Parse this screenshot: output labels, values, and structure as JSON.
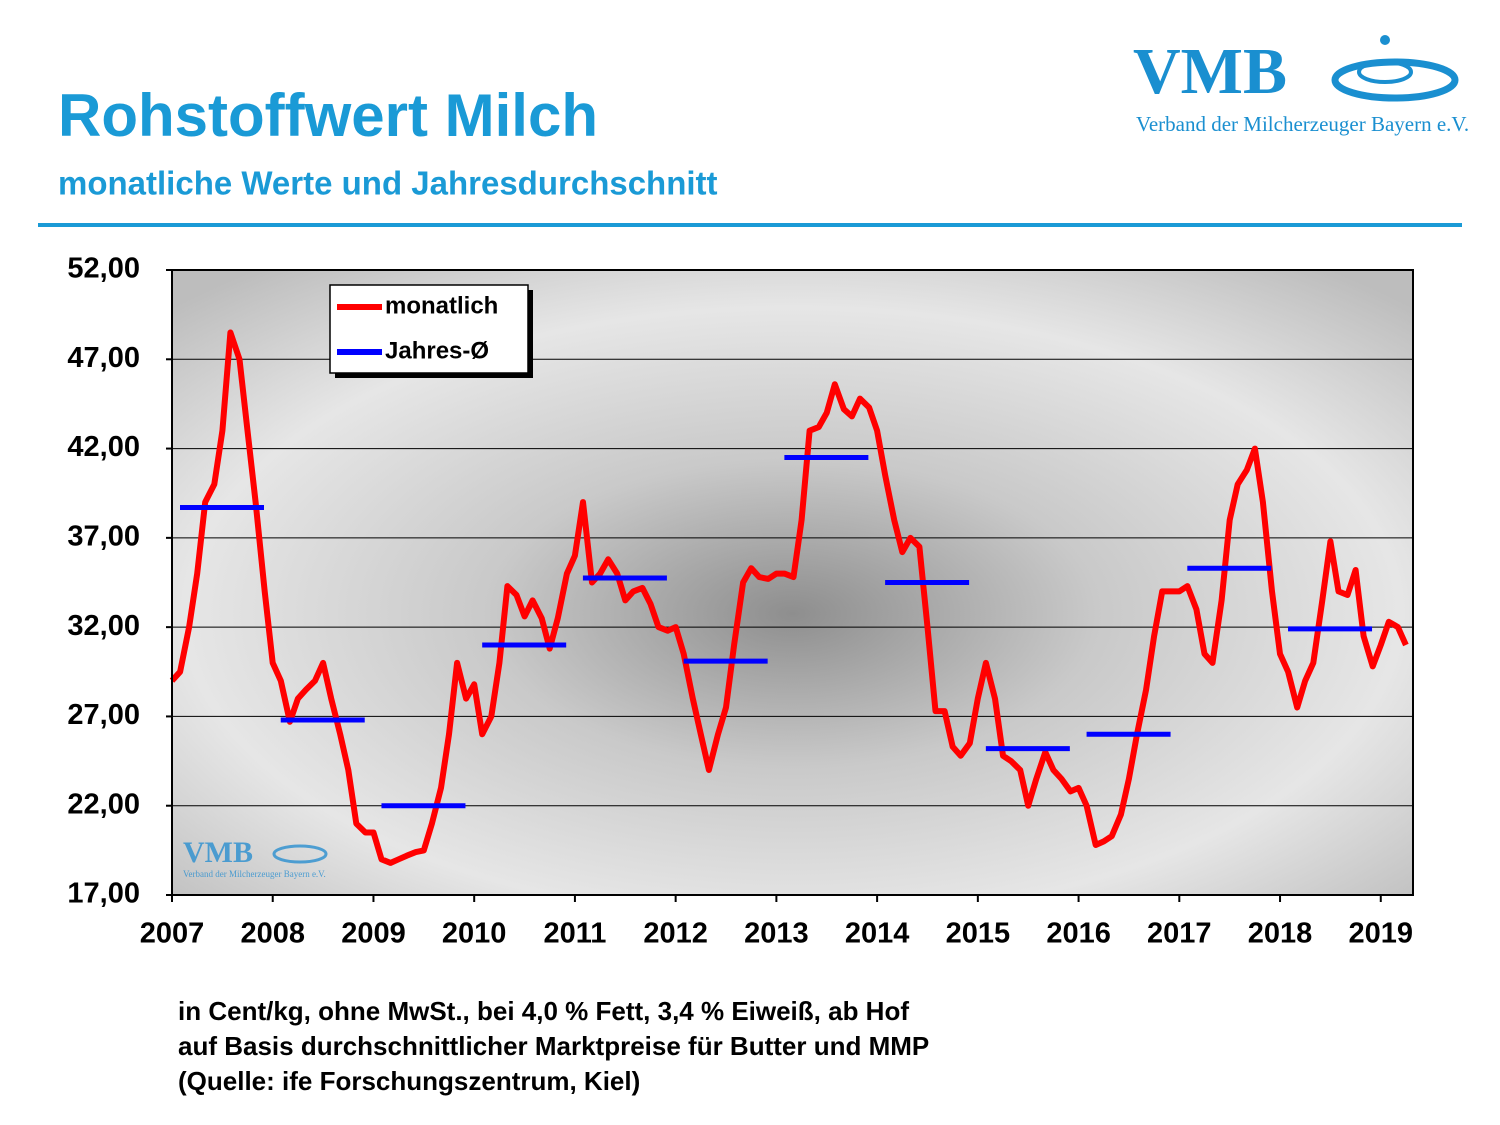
{
  "chart_data": {
    "type": "line",
    "title": "Rohstoffwert Milch",
    "subtitle": "monatliche Werte und Jahresdurchschnitt",
    "logo": "VMB",
    "logo_caption": "Verband der Milcherzeuger Bayern e.V.",
    "notes": [
      "in Cent/kg, ohne MwSt., bei 4,0 % Fett, 3,4 % Eiweiß, ab Hof",
      "auf Basis durchschnittlicher Marktpreise für Butter und MMP",
      "(Quelle: ife Forschungszentrum, Kiel)"
    ],
    "xlim": [
      2007,
      2019.32
    ],
    "xticks": [
      2007,
      2008,
      2009,
      2010,
      2011,
      2012,
      2013,
      2014,
      2015,
      2016,
      2017,
      2018,
      2019
    ],
    "ylim": [
      17,
      52
    ],
    "yticks": [
      {
        "value": 17,
        "label": "17,00"
      },
      {
        "value": 22,
        "label": "22,00"
      },
      {
        "value": 27,
        "label": "27,00"
      },
      {
        "value": 32,
        "label": "32,00"
      },
      {
        "value": 37,
        "label": "37,00"
      },
      {
        "value": 42,
        "label": "42,00"
      },
      {
        "value": 47,
        "label": "47,00"
      },
      {
        "value": 52,
        "label": "52,00"
      }
    ],
    "grid": true,
    "series": [
      {
        "name": "monatlich",
        "color": "#ff0000",
        "style": "line",
        "x": [
          2007,
          2007.08,
          2007.17,
          2007.25,
          2007.33,
          2007.42,
          2007.5,
          2007.58,
          2007.67,
          2007.75,
          2007.83,
          2007.92,
          2008,
          2008.08,
          2008.17,
          2008.25,
          2008.33,
          2008.42,
          2008.5,
          2008.58,
          2008.67,
          2008.75,
          2008.83,
          2008.92,
          2009,
          2009.08,
          2009.17,
          2009.25,
          2009.33,
          2009.42,
          2009.5,
          2009.58,
          2009.67,
          2009.75,
          2009.83,
          2009.92,
          2010,
          2010.08,
          2010.17,
          2010.25,
          2010.33,
          2010.42,
          2010.5,
          2010.58,
          2010.67,
          2010.75,
          2010.83,
          2010.92,
          2011,
          2011.08,
          2011.17,
          2011.25,
          2011.33,
          2011.42,
          2011.5,
          2011.58,
          2011.67,
          2011.75,
          2011.83,
          2011.92,
          2012,
          2012.08,
          2012.17,
          2012.25,
          2012.33,
          2012.42,
          2012.5,
          2012.58,
          2012.67,
          2012.75,
          2012.83,
          2012.92,
          2013,
          2013.08,
          2013.17,
          2013.25,
          2013.33,
          2013.42,
          2013.5,
          2013.58,
          2013.67,
          2013.75,
          2013.83,
          2013.92,
          2014,
          2014.08,
          2014.17,
          2014.25,
          2014.33,
          2014.42,
          2014.5,
          2014.58,
          2014.67,
          2014.75,
          2014.83,
          2014.92,
          2015,
          2015.08,
          2015.17,
          2015.25,
          2015.33,
          2015.42,
          2015.5,
          2015.58,
          2015.67,
          2015.75,
          2015.83,
          2015.92,
          2016,
          2016.08,
          2016.17,
          2016.25,
          2016.33,
          2016.42,
          2016.5,
          2016.58,
          2016.67,
          2016.75,
          2016.83,
          2016.92,
          2017,
          2017.08,
          2017.17,
          2017.25,
          2017.33,
          2017.42,
          2017.5,
          2017.58,
          2017.67,
          2017.75,
          2017.83,
          2017.92,
          2018,
          2018.08,
          2018.17,
          2018.25,
          2018.33,
          2018.42,
          2018.5,
          2018.58,
          2018.67,
          2018.75,
          2018.83,
          2018.92,
          2019,
          2019.08,
          2019.17,
          2019.25
        ],
        "values": [
          29,
          29.5,
          32,
          35,
          39,
          40,
          43,
          48.5,
          47,
          43,
          39,
          34,
          30,
          29,
          26.7,
          28,
          28.5,
          29,
          30,
          28,
          26,
          24,
          21,
          20.5,
          20.5,
          19,
          18.8,
          19,
          19.2,
          19.4,
          19.5,
          21,
          23,
          26,
          30,
          28,
          28.8,
          26,
          27,
          30,
          34.3,
          33.8,
          32.6,
          33.5,
          32.5,
          30.8,
          32.5,
          35,
          36,
          39,
          34.5,
          35,
          35.8,
          35,
          33.5,
          34,
          34.2,
          33.3,
          32,
          31.8,
          32,
          30.5,
          28,
          26,
          24,
          26,
          27.5,
          31,
          34.5,
          35.3,
          34.8,
          34.7,
          35,
          35,
          34.8,
          38,
          43,
          43.2,
          44,
          45.6,
          44.2,
          43.8,
          44.8,
          44.3,
          43,
          40.5,
          38,
          36.2,
          37,
          36.5,
          32,
          27.3,
          27.3,
          25.3,
          24.8,
          25.5,
          28,
          30,
          28,
          24.8,
          24.5,
          24,
          22,
          23.5,
          25,
          24,
          23.5,
          22.8,
          23,
          22,
          19.8,
          20,
          20.3,
          21.5,
          23.5,
          26,
          28.5,
          31.5,
          34,
          34,
          34,
          34.3,
          33,
          30.5,
          30,
          33.5,
          38,
          40,
          40.8,
          42,
          39,
          34,
          30.5,
          29.5,
          27.5,
          29,
          30,
          33.5,
          36.8,
          34,
          33.8,
          35.2,
          31.5,
          29.8,
          31,
          32.3,
          32,
          31
        ]
      },
      {
        "name": "Jahres-Ø",
        "color": "#0000ff",
        "style": "year-average",
        "x": [
          2007,
          2008,
          2009,
          2010,
          2011,
          2012,
          2013,
          2014,
          2015,
          2016,
          2017,
          2018
        ],
        "values": [
          38.7,
          26.8,
          22,
          31,
          34.75,
          30.1,
          41.5,
          34.5,
          25.2,
          26,
          35.3,
          31.9
        ]
      }
    ]
  }
}
